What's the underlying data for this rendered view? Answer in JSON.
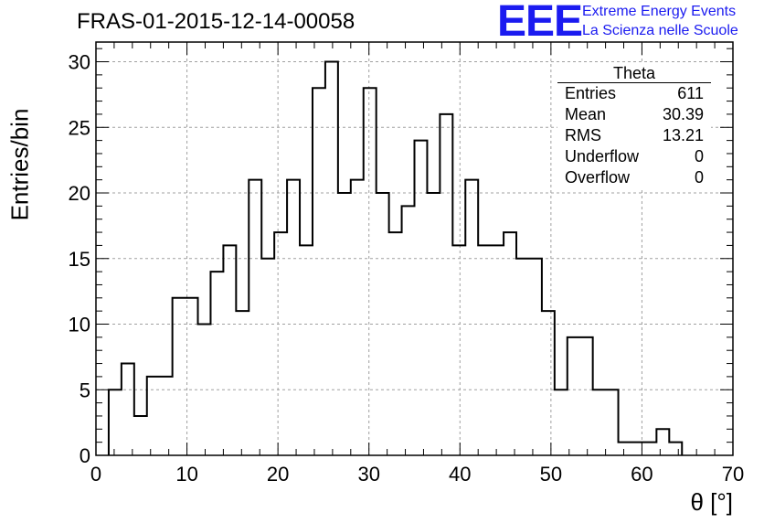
{
  "title": "FRAS-01-2015-12-14-00058",
  "logo": {
    "text": "EEE",
    "line1": "Extreme Energy Events",
    "line2": "La Scienza nelle Scuole",
    "color": "#1b1bf0"
  },
  "stats": {
    "title": "Theta",
    "rows": [
      {
        "label": "Entries",
        "value": "611"
      },
      {
        "label": "Mean",
        "value": "30.39"
      },
      {
        "label": "RMS",
        "value": "13.21"
      },
      {
        "label": "Underflow",
        "value": "0"
      },
      {
        "label": "Overflow",
        "value": "0"
      }
    ]
  },
  "chart_data": {
    "type": "histogram",
    "title": "FRAS-01-2015-12-14-00058",
    "xlabel": "θ [°]",
    "ylabel": "Entries/bin",
    "xlim": [
      0,
      70
    ],
    "ylim": [
      0,
      31.5
    ],
    "bin_width": 1.4,
    "bin_start": 1.4,
    "values": [
      5,
      7,
      3,
      6,
      6,
      12,
      12,
      10,
      14,
      16,
      11,
      21,
      15,
      17,
      21,
      16,
      28,
      30,
      20,
      21,
      28,
      20,
      17,
      19,
      24,
      20,
      26,
      16,
      21,
      16,
      16,
      17,
      15,
      15,
      11,
      5,
      9,
      9,
      5,
      5,
      1,
      1,
      1,
      2,
      1
    ],
    "x_ticks": [
      "0",
      "10",
      "20",
      "30",
      "40",
      "50",
      "60",
      "70"
    ],
    "y_ticks": [
      "0",
      "5",
      "10",
      "15",
      "20",
      "25",
      "30"
    ],
    "grid": true
  }
}
